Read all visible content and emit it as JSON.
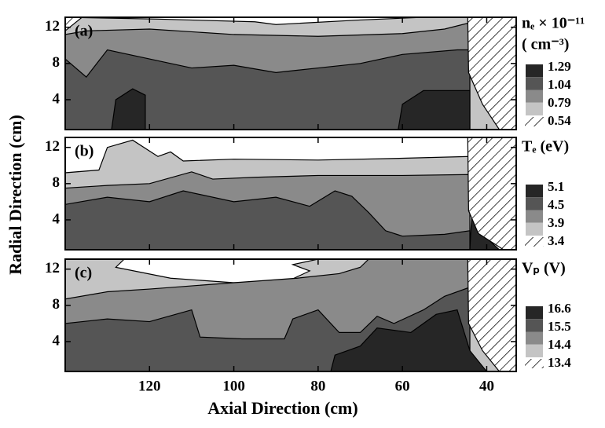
{
  "chart_data": [
    {
      "type": "contour",
      "panel_label": "(a)",
      "legend_title": [
        "nₑ × 10⁻¹¹",
        "( cm⁻³)"
      ],
      "levels": [
        1.29,
        1.04,
        0.79,
        0.54
      ],
      "fills": [
        "#262626",
        "#555555",
        "#8a8a8a",
        "#c4c4c4"
      ],
      "xlim": [
        140,
        33
      ],
      "ylim": [
        0.7,
        13.1
      ],
      "xticks": [
        120,
        100,
        80,
        60,
        40
      ],
      "yticks": [
        4,
        8,
        12
      ],
      "xtick_labels": false,
      "regions": [
        {
          "level": 0.54,
          "x": [
            140,
            140,
            118,
            95,
            90,
            70,
            55,
            33,
            33
          ],
          "y": [
            0.7,
            13.1,
            12.9,
            12.6,
            12.3,
            12.8,
            13.1,
            13.1,
            0.7
          ]
        },
        {
          "level": 0.79,
          "x": [
            140,
            140,
            135,
            120,
            100,
            80,
            60,
            50,
            44,
            44
          ],
          "y": [
            0.7,
            11.2,
            11.6,
            11.8,
            11.2,
            11.0,
            11.3,
            11.8,
            12.5,
            0.7
          ]
        },
        {
          "level": 1.04,
          "x": [
            140,
            140,
            135,
            130,
            120,
            110,
            100,
            90,
            80,
            70,
            60,
            47,
            44,
            44
          ],
          "y": [
            0.7,
            8.5,
            6.5,
            9.5,
            8.5,
            7.5,
            7.8,
            7.0,
            7.5,
            8.0,
            9.0,
            9.5,
            9.5,
            0.7
          ]
        },
        {
          "level": 1.29,
          "x": [
            129,
            128,
            124,
            121,
            121
          ],
          "y": [
            0.7,
            4,
            5.2,
            4.5,
            0.7
          ]
        },
        {
          "level": 1.29,
          "x": [
            61,
            60,
            55,
            44,
            44
          ],
          "y": [
            0.7,
            3.5,
            5,
            5,
            0.7
          ]
        }
      ],
      "excluded": [
        {
          "x": [
            44.5,
            44.3,
            41,
            37,
            33,
            33
          ],
          "y": [
            13.1,
            7,
            3.5,
            0.7,
            0.7,
            13.1
          ]
        },
        {
          "x": [
            140,
            136,
            140
          ],
          "y": [
            13.1,
            13.1,
            11.6
          ]
        }
      ]
    },
    {
      "type": "contour",
      "panel_label": "(b)",
      "legend_title": [
        "Tₑ (eV)"
      ],
      "ylabel": "Radial  Direction (cm)",
      "levels": [
        5.1,
        4.5,
        3.9,
        3.4
      ],
      "fills": [
        "#262626",
        "#555555",
        "#8a8a8a",
        "#c4c4c4"
      ],
      "xlim": [
        140,
        33
      ],
      "ylim": [
        0.7,
        13.1
      ],
      "xticks": [
        120,
        100,
        80,
        60,
        40
      ],
      "yticks": [
        4,
        8,
        12
      ],
      "xtick_labels": false,
      "regions": [
        {
          "level": 3.4,
          "x": [
            140,
            140,
            132,
            130,
            124,
            118,
            115,
            112,
            100,
            80,
            60,
            44,
            44
          ],
          "y": [
            0.7,
            9.2,
            9.5,
            12,
            12.8,
            11,
            11.5,
            10.5,
            10.7,
            10.6,
            10.8,
            11,
            0.7
          ]
        },
        {
          "level": 3.9,
          "x": [
            140,
            140,
            130,
            120,
            110,
            105,
            95,
            80,
            60,
            44,
            44
          ],
          "y": [
            0.7,
            7.5,
            7.8,
            8.0,
            9.3,
            8.5,
            8.7,
            8.9,
            8.9,
            9.0,
            0.7
          ]
        },
        {
          "level": 4.5,
          "x": [
            140,
            140,
            130,
            120,
            112,
            100,
            90,
            82,
            76,
            72,
            68,
            64,
            60,
            50,
            44,
            44
          ],
          "y": [
            0.7,
            5.7,
            6.5,
            6.0,
            7.2,
            6.0,
            6.5,
            5.5,
            7.2,
            6.6,
            4.8,
            2.8,
            2.2,
            2.4,
            2.8,
            0.7
          ]
        },
        {
          "level": 5.1,
          "x": [
            44,
            43.5,
            42,
            40,
            37
          ],
          "y": [
            0.7,
            5,
            5,
            2,
            0.7
          ]
        }
      ],
      "excluded": [
        {
          "x": [
            44.5,
            44.3,
            42,
            36,
            33,
            33
          ],
          "y": [
            13.1,
            5,
            2.5,
            0.7,
            0.7,
            13.1
          ]
        }
      ]
    },
    {
      "type": "contour",
      "panel_label": "(c)",
      "legend_title": [
        "Vₚ (V)"
      ],
      "xlabel": "Axial Direction (cm)",
      "levels": [
        16.6,
        15.5,
        14.4,
        13.4
      ],
      "fills": [
        "#262626",
        "#555555",
        "#8a8a8a",
        "#c4c4c4"
      ],
      "xlim": [
        140,
        33
      ],
      "ylim": [
        0.7,
        13.1
      ],
      "xticks": [
        120,
        100,
        80,
        60,
        40
      ],
      "yticks": [
        4,
        8,
        12
      ],
      "xtick_labels": true,
      "regions": [
        {
          "level": 13.4,
          "x": [
            140,
            140,
            126,
            128,
            115,
            100,
            88,
            82,
            86,
            80,
            33,
            33
          ],
          "y": [
            0.7,
            13.1,
            13.1,
            12.2,
            11,
            10.5,
            10.5,
            11.8,
            12.5,
            13.1,
            13.1,
            0.7
          ]
        },
        {
          "level": 14.4,
          "x": [
            140,
            140,
            130,
            120,
            100,
            85,
            75,
            70,
            68,
            44,
            44
          ],
          "y": [
            0.7,
            8.7,
            9.5,
            9.8,
            10.5,
            11.0,
            11.5,
            12.2,
            13.1,
            13.1,
            0.7
          ]
        },
        {
          "level": 15.5,
          "x": [
            140,
            140,
            130,
            120,
            110,
            108,
            98,
            88,
            86,
            80,
            75,
            70,
            66,
            62,
            55,
            50,
            44,
            44
          ],
          "y": [
            0.7,
            6.0,
            6.5,
            6.2,
            7.5,
            4.5,
            4.3,
            4.3,
            6.5,
            7.5,
            5.0,
            5.0,
            6.8,
            6.0,
            7.5,
            9.0,
            10,
            0.7
          ]
        },
        {
          "level": 16.6,
          "x": [
            77,
            76,
            70,
            66,
            58,
            52,
            47,
            44,
            40
          ],
          "y": [
            0.7,
            2.5,
            3.5,
            5.5,
            5,
            7,
            7.5,
            3,
            0.7
          ]
        }
      ],
      "excluded": [
        {
          "x": [
            44.5,
            44.3,
            41,
            37,
            33,
            33
          ],
          "y": [
            13.1,
            6,
            3,
            0.7,
            0.7,
            13.1
          ]
        }
      ]
    }
  ]
}
